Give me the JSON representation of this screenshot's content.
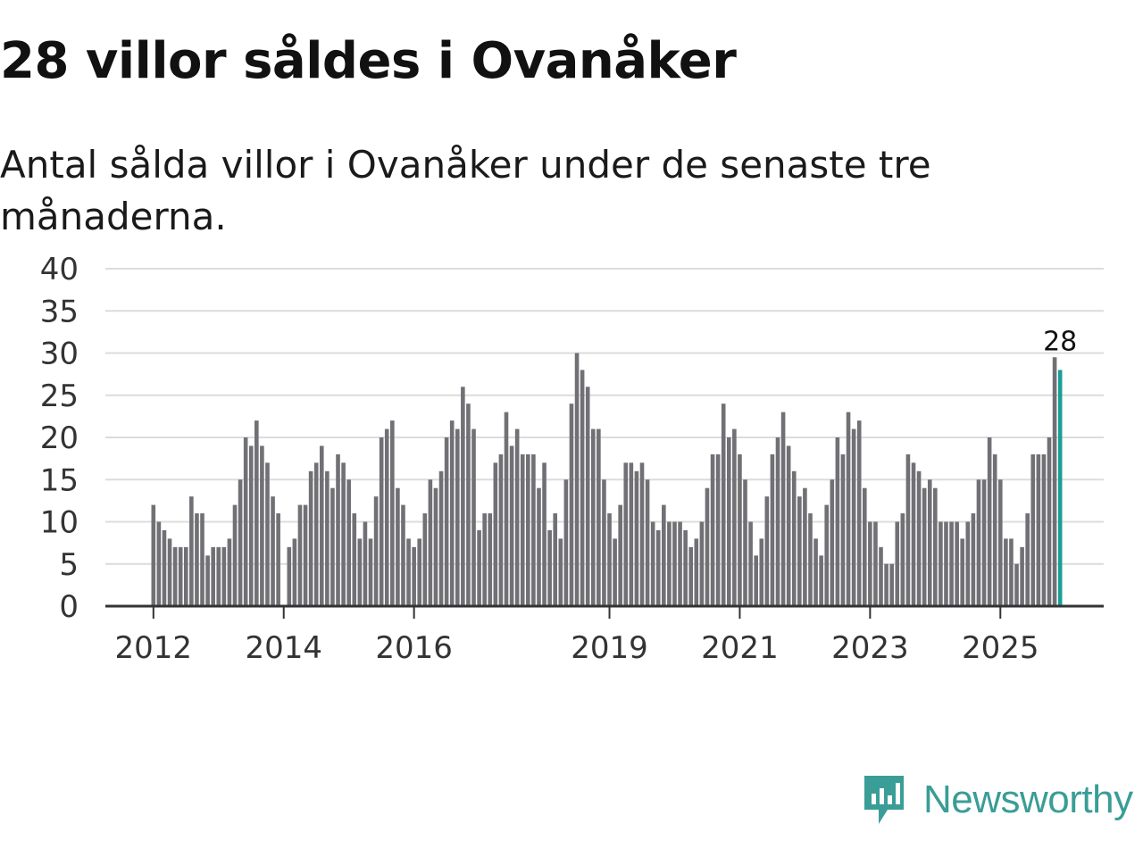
{
  "title": "28 villor såldes i Ovanåker",
  "subtitle": "Antal sålda villor i Ovanåker under de senaste tre månaderna.",
  "brand": {
    "name": "Newsworthy"
  },
  "colors": {
    "bar": "#707075",
    "highlight": "#1a9e96",
    "grid": "#dcdcdc",
    "axis": "#333333",
    "brand": "#3a9d96"
  },
  "chart_data": {
    "type": "bar",
    "title": "28 villor såldes i Ovanåker",
    "xlabel": "",
    "ylabel": "",
    "ylim": [
      0,
      40
    ],
    "yticks": [
      "0",
      "5",
      "10",
      "15",
      "20",
      "25",
      "30",
      "35",
      "40"
    ],
    "xticks": [
      {
        "label": "2012",
        "index": 0
      },
      {
        "label": "2014",
        "index": 24
      },
      {
        "label": "2016",
        "index": 48
      },
      {
        "label": "2019",
        "index": 84
      },
      {
        "label": "2021",
        "index": 108
      },
      {
        "label": "2023",
        "index": 132
      },
      {
        "label": "2025",
        "index": 156
      }
    ],
    "highlight_label": "28",
    "values": [
      12,
      10,
      9,
      8,
      7,
      7,
      7,
      13,
      11,
      11,
      6,
      7,
      7,
      7,
      8,
      12,
      15,
      20,
      19,
      22,
      19,
      17,
      13,
      11,
      0,
      7,
      8,
      12,
      12,
      16,
      17,
      19,
      16,
      14,
      18,
      17,
      15,
      11,
      8,
      10,
      8,
      13,
      20,
      21,
      22,
      14,
      12,
      8,
      7,
      8,
      11,
      15,
      14,
      16,
      20,
      22,
      21,
      26,
      24,
      21,
      9,
      11,
      11,
      17,
      18,
      23,
      19,
      21,
      18,
      18,
      18,
      14,
      17,
      9,
      11,
      8,
      15,
      24,
      30,
      28,
      26,
      21,
      21,
      15,
      11,
      8,
      12,
      17,
      17,
      16,
      17,
      15,
      10,
      9,
      12,
      10,
      10,
      10,
      9,
      7,
      8,
      10,
      14,
      18,
      18,
      24,
      20,
      21,
      18,
      15,
      10,
      6,
      8,
      13,
      18,
      20,
      23,
      19,
      16,
      13,
      14,
      11,
      8,
      6,
      12,
      15,
      20,
      18,
      23,
      21,
      22,
      14,
      10,
      10,
      7,
      5,
      5,
      10,
      11,
      18,
      17,
      16,
      14,
      15,
      14,
      10,
      10,
      10,
      10,
      8,
      10,
      11,
      15,
      15,
      20,
      18,
      15,
      8,
      8,
      5,
      7,
      11,
      18,
      18,
      18,
      20,
      29.5,
      28
    ]
  }
}
